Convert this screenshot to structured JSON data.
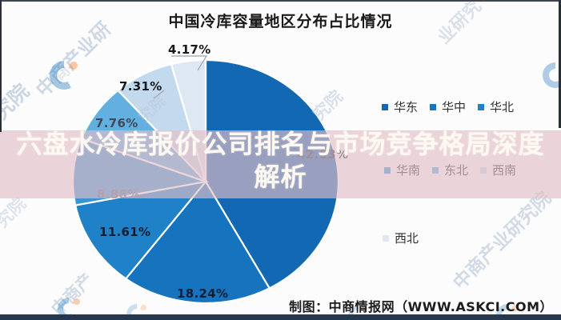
{
  "page": {
    "overlay_headline": {
      "line1": "六盘水冷库报价公司排名与市场竞争格局深度",
      "line2": "解析",
      "background_color": "#e2bec6",
      "background_opacity": 0.65,
      "text_color": "#fdf9f2"
    },
    "attribution": "制图：中商情报网（WWW.ASKCI.COM）"
  },
  "chart_data": {
    "type": "pie",
    "title": "中国冷库容量地区分布占比情况",
    "start_angle_deg": 0,
    "direction": "clockwise",
    "series": [
      {
        "name": "华东",
        "value": 42.03,
        "label": "42.03%",
        "color": "#1268b2"
      },
      {
        "name": "华中",
        "value": 18.24,
        "label": "18.24%",
        "color": "#1673bd"
      },
      {
        "name": "华北",
        "value": 11.61,
        "label": "11.61%",
        "color": "#1f81c8"
      },
      {
        "name": "华南",
        "value": 8.88,
        "label": "8.88%",
        "color": "#3a95d4"
      },
      {
        "name": "东北",
        "value": 7.76,
        "label": "7.76%",
        "color": "#63afe0"
      },
      {
        "name": "西南",
        "value": 7.31,
        "label": "7.31%",
        "color": "#c3d9ed"
      },
      {
        "name": "西北",
        "value": 4.17,
        "label": "4.17%",
        "color": "#dde8f3"
      }
    ],
    "legend_position": "right",
    "legend_rows": [
      [
        "华东",
        "华中",
        "华北"
      ],
      [
        "华南",
        "东北",
        "西南"
      ],
      [
        "西北"
      ]
    ],
    "separator_color": "#ffffff"
  },
  "watermarks": {
    "items": [
      "中商产业研",
      "究院",
      "业研究",
      "究院",
      "究院",
      "中商产业研究院",
      "中商产",
      "究院"
    ]
  }
}
